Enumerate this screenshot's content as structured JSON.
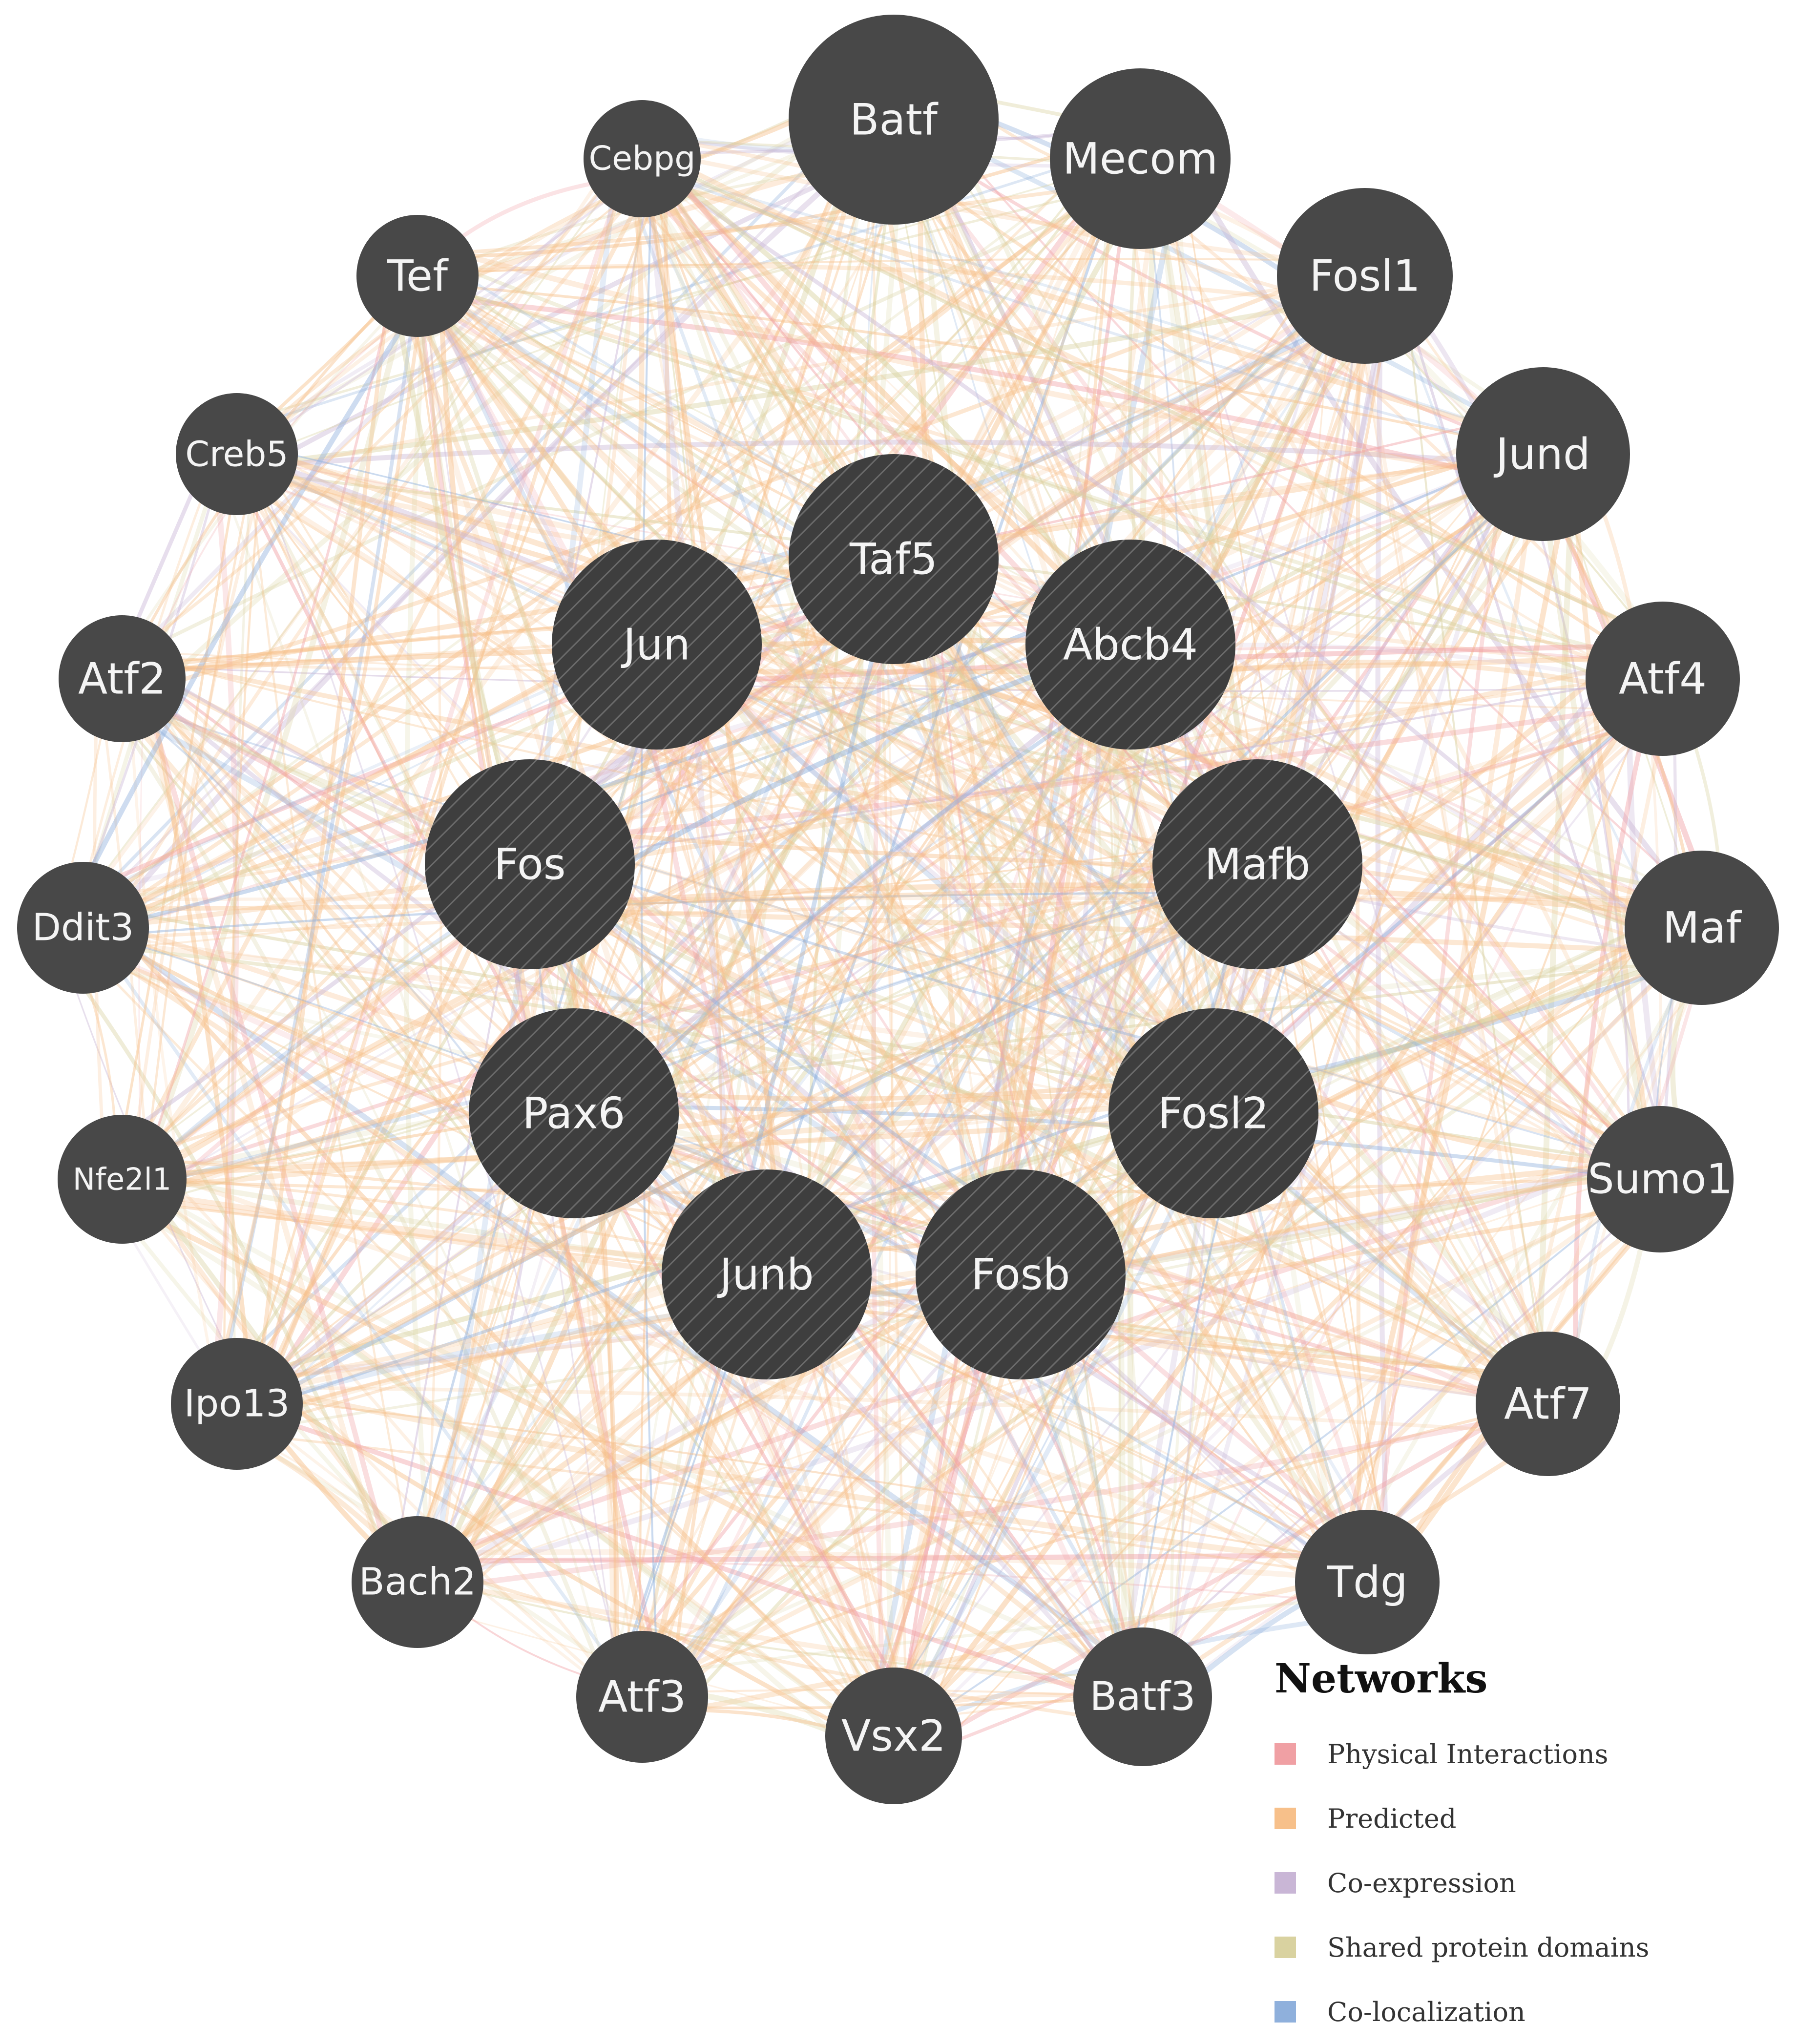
{
  "nodes": [
    {
      "id": "Batf",
      "label": "Batf",
      "query": false
    },
    {
      "id": "Mecom",
      "label": "Mecom",
      "query": false
    },
    {
      "id": "Fosl1",
      "label": "Fosl1",
      "query": false
    },
    {
      "id": "Jund",
      "label": "Jund",
      "query": false
    },
    {
      "id": "Atf4",
      "label": "Atf4",
      "query": false
    },
    {
      "id": "Maf",
      "label": "Maf",
      "query": false
    },
    {
      "id": "Sumo1",
      "label": "Sumo1",
      "query": false
    },
    {
      "id": "Atf7",
      "label": "Atf7",
      "query": false
    },
    {
      "id": "Tdg",
      "label": "Tdg",
      "query": false
    },
    {
      "id": "Batf3",
      "label": "Batf3",
      "query": false
    },
    {
      "id": "Vsx2",
      "label": "Vsx2",
      "query": false
    },
    {
      "id": "Atf3",
      "label": "Atf3",
      "query": false
    },
    {
      "id": "Bach2",
      "label": "Bach2",
      "query": false
    },
    {
      "id": "Ipo13",
      "label": "Ipo13",
      "query": false
    },
    {
      "id": "Nfe2l1",
      "label": "Nfe2l1",
      "query": false
    },
    {
      "id": "Ddit3",
      "label": "Ddit3",
      "query": false
    },
    {
      "id": "Atf2",
      "label": "Atf2",
      "query": false
    },
    {
      "id": "Creb5",
      "label": "Creb5",
      "query": false
    },
    {
      "id": "Tef",
      "label": "Tef",
      "query": false
    },
    {
      "id": "Cebpg",
      "label": "Cebpg",
      "query": false
    },
    {
      "id": "Taf5",
      "label": "Taf5",
      "query": true
    },
    {
      "id": "Jun",
      "label": "Jun",
      "query": true
    },
    {
      "id": "Abcb4",
      "label": "Abcb4",
      "query": true
    },
    {
      "id": "Fos",
      "label": "Fos",
      "query": true
    },
    {
      "id": "Mafb",
      "label": "Mafb",
      "query": true
    },
    {
      "id": "Pax6",
      "label": "Pax6",
      "query": true
    },
    {
      "id": "Fosl2",
      "label": "Fosl2",
      "query": true
    },
    {
      "id": "Junb",
      "label": "Junb",
      "query": true
    },
    {
      "id": "Fosb",
      "label": "Fosb",
      "query": true
    }
  ],
  "colors": {
    "node_fill": "#484848",
    "node_label": "#f4f4f4",
    "physical": "#f0a0a4",
    "predicted": "#f7c08a",
    "coexpression": "#c9b6d6",
    "shared_domains": "#d9d2a0",
    "colocalization": "#8fb0dc"
  },
  "legend": {
    "title": "Networks",
    "items": [
      {
        "label": "Physical Interactions",
        "color": "#f0a0a4"
      },
      {
        "label": "Predicted",
        "color": "#f7c08a"
      },
      {
        "label": "Co-expression",
        "color": "#c9b6d6"
      },
      {
        "label": "Shared protein domains",
        "color": "#d9d2a0"
      },
      {
        "label": "Co-localization",
        "color": "#8fb0dc"
      }
    ]
  }
}
